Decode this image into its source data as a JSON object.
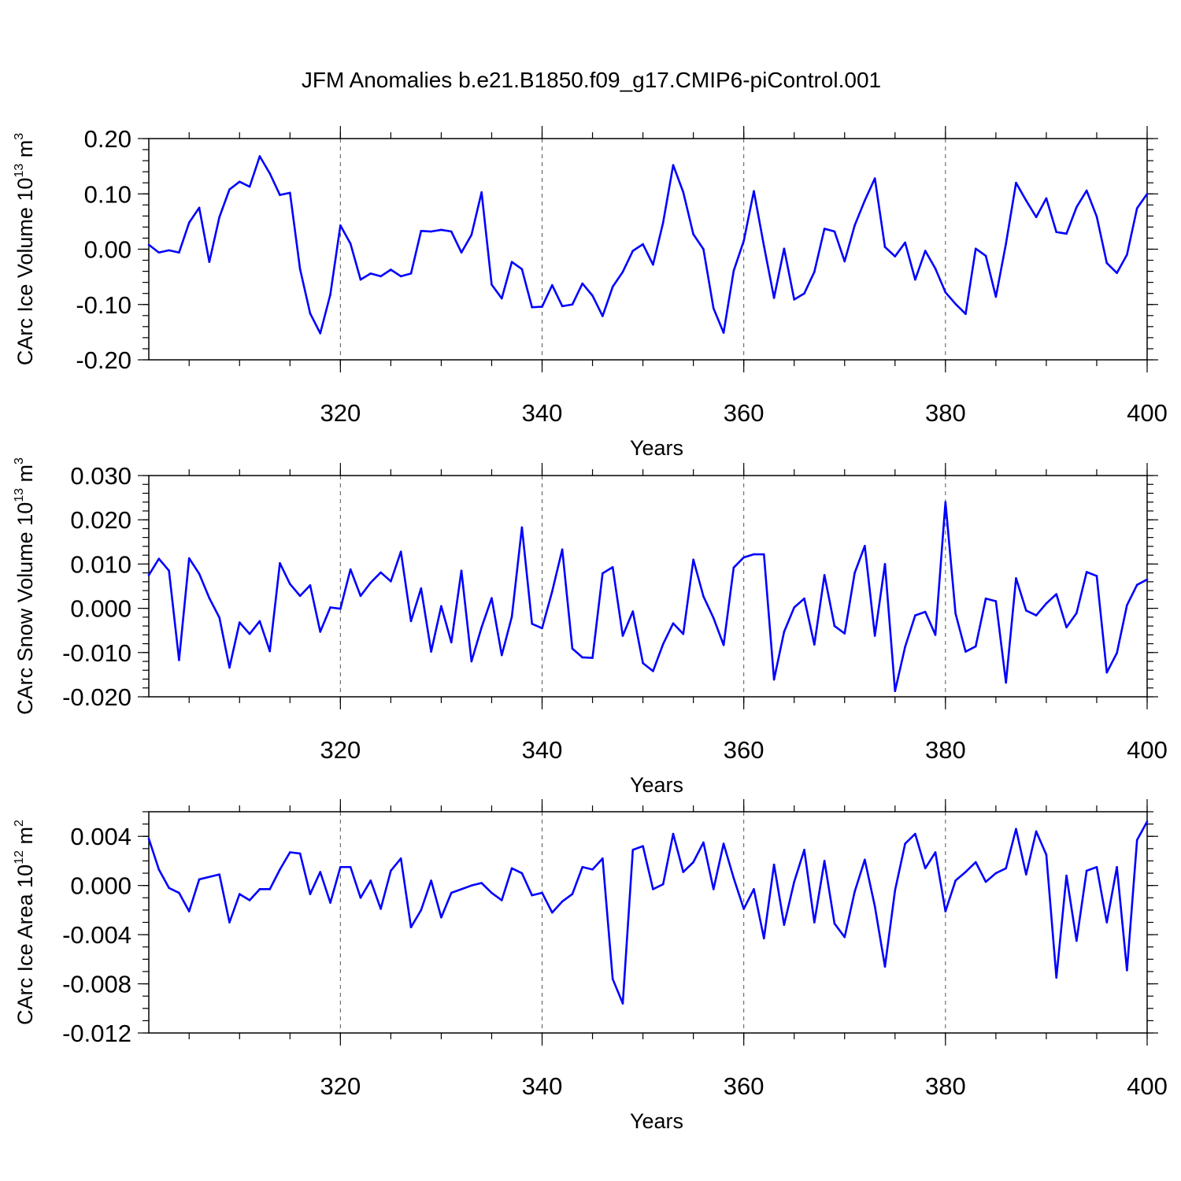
{
  "figure_title": "JFM Anomalies b.e21.B1850.f09_g17.CMIP6-piControl.001",
  "colors": {
    "line": "#0000ff",
    "axes": "#000000",
    "grid": "#555555"
  },
  "chart_data": [
    {
      "type": "line",
      "ylabel_main": "CArc Ice Volume 10",
      "ylabel_exp": "13",
      "ylabel_unit": " m",
      "ylabel_unit_exp": "3",
      "xlabel": "Years",
      "xlim": [
        301,
        400
      ],
      "ylim": [
        -0.2,
        0.2
      ],
      "yticks": [
        -0.2,
        -0.1,
        0.0,
        0.1,
        0.2
      ],
      "ytick_labels": [
        "-0.20",
        "-0.10",
        "0.00",
        "0.10",
        "0.20"
      ],
      "yminor": 0.02,
      "xticks": [
        320,
        340,
        360,
        380,
        400
      ],
      "xtick_labels": [
        "320",
        "340",
        "360",
        "380",
        "400"
      ],
      "xminor": 5,
      "grid_x": [
        320,
        340,
        360,
        380
      ],
      "series": [
        {
          "name": "CArc Ice Volume",
          "x_start": 301,
          "values": [
            0.008,
            -0.006,
            -0.002,
            -0.006,
            0.048,
            0.075,
            -0.023,
            0.058,
            0.108,
            0.122,
            0.113,
            0.168,
            0.137,
            0.098,
            0.102,
            -0.036,
            -0.116,
            -0.152,
            -0.082,
            0.043,
            0.01,
            -0.055,
            -0.044,
            -0.049,
            -0.037,
            -0.049,
            -0.044,
            0.033,
            0.032,
            0.035,
            0.032,
            -0.006,
            0.026,
            0.103,
            -0.064,
            -0.089,
            -0.023,
            -0.036,
            -0.105,
            -0.104,
            -0.065,
            -0.103,
            -0.1,
            -0.062,
            -0.084,
            -0.121,
            -0.068,
            -0.041,
            -0.003,
            0.009,
            -0.028,
            0.048,
            0.152,
            0.103,
            0.027,
            0.0,
            -0.107,
            -0.151,
            -0.039,
            0.015,
            0.105,
            0.006,
            -0.088,
            0.001,
            -0.091,
            -0.08,
            -0.041,
            0.037,
            0.032,
            -0.022,
            0.043,
            0.088,
            0.128,
            0.004,
            -0.013,
            0.012,
            -0.055,
            -0.003,
            -0.035,
            -0.078,
            -0.099,
            -0.117,
            0.001,
            -0.012,
            -0.086,
            0.01,
            0.12,
            0.088,
            0.058,
            0.092,
            0.031,
            0.028,
            0.076,
            0.106,
            0.059,
            -0.025,
            -0.043,
            -0.01,
            0.074,
            0.1
          ]
        }
      ]
    },
    {
      "type": "line",
      "ylabel_main": "CArc Snow Volume 10",
      "ylabel_exp": "13",
      "ylabel_unit": " m",
      "ylabel_unit_exp": "3",
      "xlabel": "Years",
      "xlim": [
        301,
        400
      ],
      "ylim": [
        -0.02,
        0.03
      ],
      "yticks": [
        -0.02,
        -0.01,
        0.0,
        0.01,
        0.02,
        0.03
      ],
      "ytick_labels": [
        "-0.020",
        "-0.010",
        "0.000",
        "0.010",
        "0.020",
        "0.030"
      ],
      "yminor": 0.002,
      "xticks": [
        320,
        340,
        360,
        380,
        400
      ],
      "xtick_labels": [
        "320",
        "340",
        "360",
        "380",
        "400"
      ],
      "xminor": 5,
      "grid_x": [
        320,
        340,
        360,
        380
      ],
      "series": [
        {
          "name": "CArc Snow Volume",
          "x_start": 301,
          "values": [
            0.0075,
            0.0112,
            0.0085,
            -0.0117,
            0.0113,
            0.0078,
            0.0023,
            -0.0021,
            -0.0134,
            -0.0032,
            -0.0058,
            -0.0029,
            -0.0097,
            0.0102,
            0.0055,
            0.0028,
            0.0052,
            -0.0053,
            0.0002,
            -0.0001,
            0.0088,
            0.0028,
            0.0058,
            0.0081,
            0.0061,
            0.0128,
            -0.0029,
            0.0045,
            -0.0098,
            0.0005,
            -0.0077,
            0.0085,
            -0.012,
            -0.0043,
            0.0023,
            -0.0106,
            -0.0019,
            0.0183,
            -0.0035,
            -0.0045,
            0.0038,
            0.0133,
            -0.0091,
            -0.0111,
            -0.0112,
            0.0079,
            0.0093,
            -0.0062,
            -0.0007,
            -0.0124,
            -0.0142,
            -0.0081,
            -0.0034,
            -0.0058,
            0.011,
            0.0027,
            -0.0022,
            -0.0083,
            0.0092,
            0.0115,
            0.0122,
            0.0122,
            -0.0161,
            -0.0053,
            0.0002,
            0.0022,
            -0.0082,
            0.0075,
            -0.004,
            -0.0057,
            0.008,
            0.0141,
            -0.0062,
            0.01,
            -0.0187,
            -0.0087,
            -0.0016,
            -0.0008,
            -0.006,
            0.024,
            -0.0012,
            -0.0098,
            -0.0086,
            0.0022,
            0.0016,
            -0.0168,
            0.0068,
            -0.0005,
            -0.0016,
            0.0011,
            0.0032,
            -0.0043,
            -0.0011,
            0.0082,
            0.0073,
            -0.0145,
            -0.0101,
            0.0007,
            0.0053,
            0.0065
          ]
        }
      ]
    },
    {
      "type": "line",
      "ylabel_main": "CArc Ice Area 10",
      "ylabel_exp": "12",
      "ylabel_unit": " m",
      "ylabel_unit_exp": "2",
      "xlabel": "Years",
      "xlim": [
        301,
        400
      ],
      "ylim": [
        -0.012,
        0.006
      ],
      "yticks": [
        -0.012,
        -0.008,
        -0.004,
        0.0,
        0.004
      ],
      "ytick_labels": [
        "-0.012",
        "-0.008",
        "-0.004",
        "0.000",
        "0.004"
      ],
      "yminor": 0.001,
      "xticks": [
        320,
        340,
        360,
        380,
        400
      ],
      "xtick_labels": [
        "320",
        "340",
        "360",
        "380",
        "400"
      ],
      "xminor": 5,
      "grid_x": [
        320,
        340,
        360,
        380
      ],
      "series": [
        {
          "name": "CArc Ice Area",
          "x_start": 301,
          "values": [
            0.0038,
            0.0013,
            -0.0002,
            -0.0006,
            -0.0021,
            0.0005,
            0.0007,
            0.0009,
            -0.003,
            -0.0007,
            -0.0012,
            -0.0003,
            -0.0003,
            0.0013,
            0.0027,
            0.0026,
            -0.0007,
            0.0011,
            -0.0014,
            0.0015,
            0.0015,
            -0.001,
            0.0004,
            -0.0019,
            0.0012,
            0.0022,
            -0.0034,
            -0.002,
            0.0004,
            -0.0026,
            -0.0006,
            -0.0003,
            0.0,
            0.0002,
            -0.0006,
            -0.0012,
            0.0014,
            0.001,
            -0.0008,
            -0.0006,
            -0.0022,
            -0.0013,
            -0.0007,
            0.0015,
            0.0013,
            0.0022,
            -0.0076,
            -0.0096,
            0.0029,
            0.0032,
            -0.0003,
            0.0001,
            0.0042,
            0.0011,
            0.0019,
            0.0035,
            -0.0003,
            0.0034,
            0.0006,
            -0.0019,
            -0.0003,
            -0.0043,
            0.0017,
            -0.0032,
            0.0003,
            0.0029,
            -0.003,
            0.002,
            -0.0031,
            -0.0042,
            -0.0005,
            0.0021,
            -0.0017,
            -0.0066,
            -0.0004,
            0.0034,
            0.0042,
            0.0014,
            0.0027,
            -0.0021,
            0.0004,
            0.0011,
            0.0019,
            0.0003,
            0.001,
            0.0014,
            0.0046,
            0.0009,
            0.0044,
            0.0025,
            -0.0075,
            0.0008,
            -0.0045,
            0.0012,
            0.0015,
            -0.003,
            0.0015,
            -0.0069,
            0.0037,
            0.0052
          ]
        }
      ]
    }
  ]
}
